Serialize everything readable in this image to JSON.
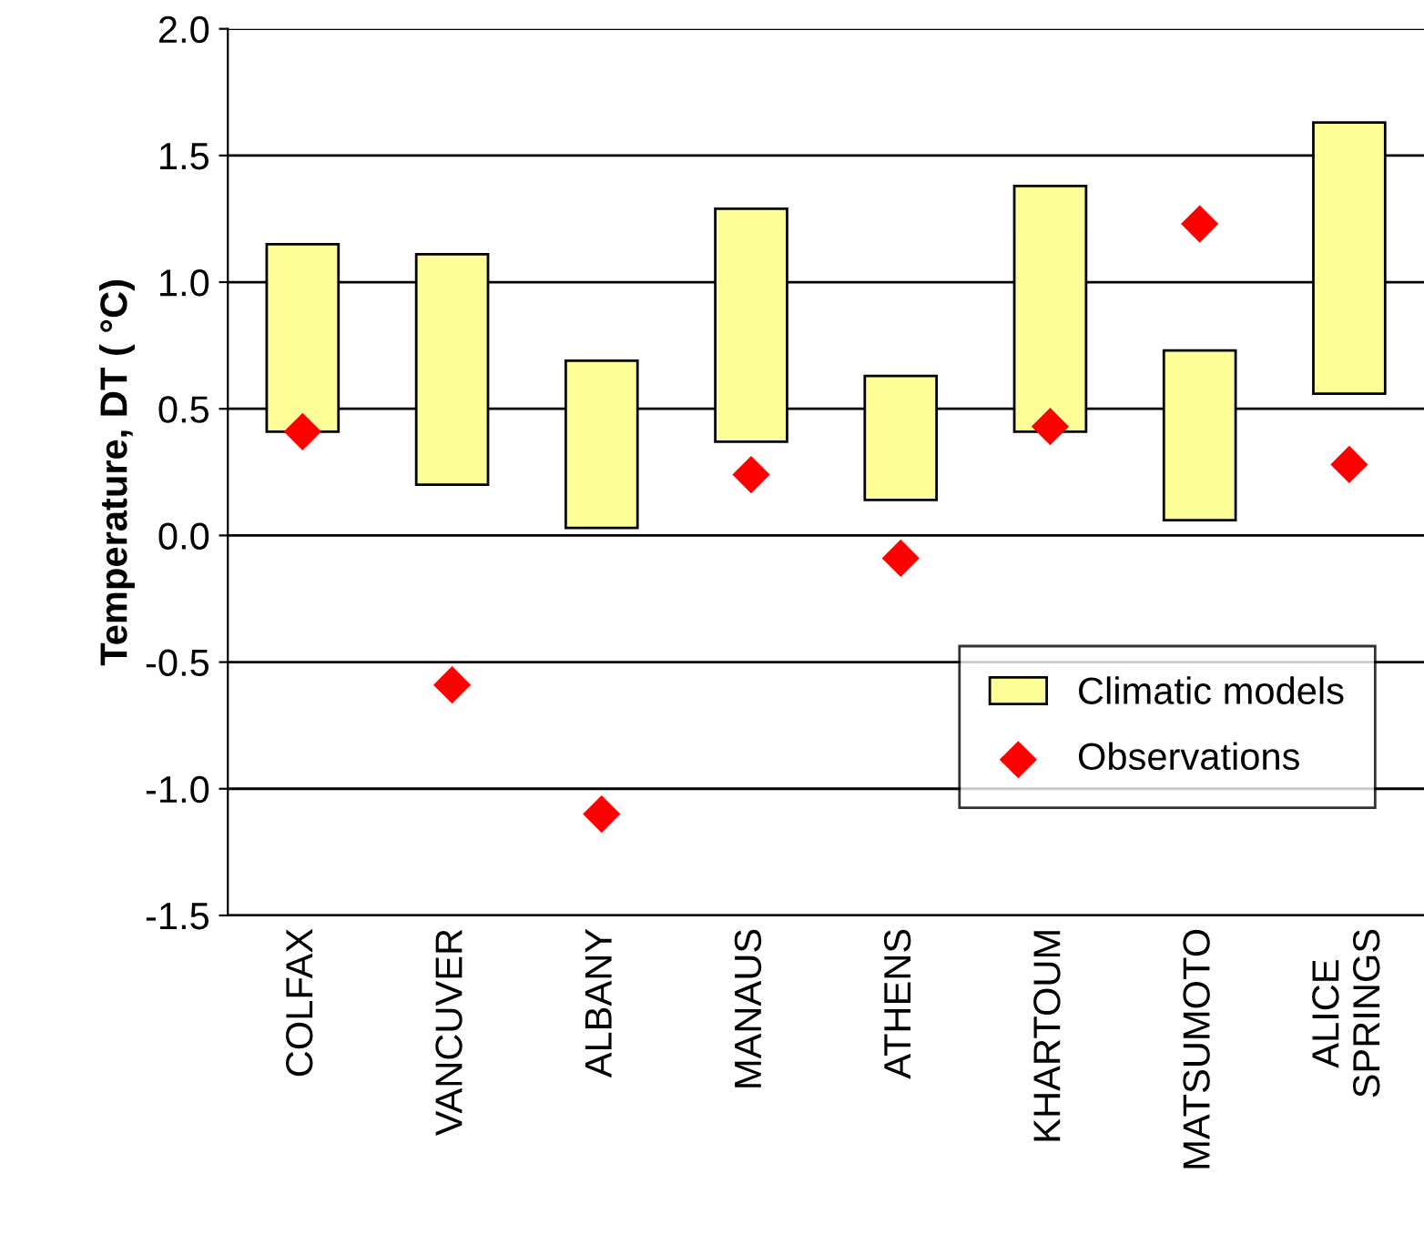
{
  "chart_data": {
    "type": "bar",
    "ylabel": "Temperature, DT ( °C)",
    "categories": [
      "COLFAX",
      "VANCUVER",
      "ALBANY",
      "MANAUS",
      "ATHENS",
      "KHARTOUM",
      "MATSUMOTO",
      "ALICE\nSPRINGS"
    ],
    "series": [
      {
        "name": "Climatic models",
        "color": "#ffff99",
        "base": [
          0.41,
          0.2,
          0.03,
          0.37,
          0.14,
          0.41,
          0.06,
          0.56
        ],
        "values": [
          0.74,
          0.91,
          0.66,
          0.92,
          0.49,
          0.97,
          0.67,
          1.07
        ]
      },
      {
        "name": "Observations",
        "type": "scatter",
        "color": "#ff0000",
        "marker": "diamond",
        "values": [
          0.41,
          -0.59,
          -1.1,
          0.24,
          -0.09,
          0.43,
          1.23,
          0.28
        ]
      }
    ],
    "ylim": [
      -1.5,
      2.0
    ],
    "yticks": [
      {
        "value": -1.5,
        "label": "-1.5"
      },
      {
        "value": -1.0,
        "label": "-1.0"
      },
      {
        "value": -0.5,
        "label": "-0.5"
      },
      {
        "value": 0.0,
        "label": "0.0"
      },
      {
        "value": 0.5,
        "label": "0.5"
      },
      {
        "value": 1.0,
        "label": "1.0"
      },
      {
        "value": 1.5,
        "label": "1.5"
      },
      {
        "value": 2.0,
        "label": "2.0"
      }
    ],
    "grid": "y",
    "legend": "bottom right"
  }
}
